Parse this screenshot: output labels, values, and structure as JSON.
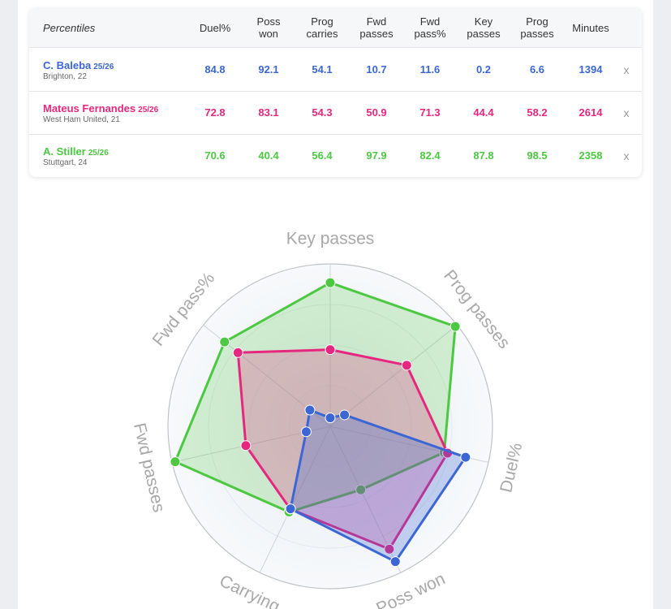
{
  "table": {
    "header": [
      "Percentiles",
      "Duel%",
      "Poss\nwon",
      "Prog\ncarries",
      "Fwd\npasses",
      "Fwd\npass%",
      "Key\npasses",
      "Prog\npasses",
      "Minutes"
    ],
    "remove_label": "x",
    "players": [
      {
        "name": "C. Baleba",
        "season": "25/26",
        "club": "Brighton, 22",
        "color": "#3b66d4",
        "values": [
          "84.8",
          "92.1",
          "54.1",
          "10.7",
          "11.6",
          "0.2",
          "6.6",
          "1394"
        ]
      },
      {
        "name": "Mateus Fernandes",
        "season": "25/26",
        "club": "West Ham United, 21",
        "color": "#e6277f",
        "values": [
          "72.8",
          "83.1",
          "54.3",
          "50.9",
          "71.3",
          "44.4",
          "58.2",
          "2614"
        ]
      },
      {
        "name": "A. Stiller",
        "season": "25/26",
        "club": "Stuttgart, 24",
        "color": "#4cc842",
        "values": [
          "70.6",
          "40.4",
          "56.4",
          "97.9",
          "82.4",
          "87.8",
          "98.5",
          "2358"
        ]
      }
    ]
  },
  "chart_data": {
    "type": "radar",
    "axes": [
      "Key passes",
      "Prog passes",
      "Duel%",
      "Poss won",
      "Carrying",
      "Fwd passes",
      "Fwd pass%"
    ],
    "range": [
      0,
      100
    ],
    "series": [
      {
        "name": "A. Stiller",
        "color": "#4cc842",
        "fill": "rgba(76,200,66,0.22)",
        "values": [
          87.8,
          98.5,
          70.6,
          40.4,
          56.4,
          97.9,
          82.4
        ]
      },
      {
        "name": "Mateus Fernandes",
        "color": "#e6277f",
        "fill": "rgba(230,39,127,0.25)",
        "values": [
          44.4,
          58.2,
          72.8,
          83.1,
          54.3,
          50.9,
          71.3
        ]
      },
      {
        "name": "C. Baleba",
        "color": "#3b66d4",
        "fill": "rgba(59,102,212,0.28)",
        "values": [
          0.2,
          6.6,
          84.8,
          92.1,
          54.1,
          10.7,
          11.6
        ]
      }
    ]
  }
}
